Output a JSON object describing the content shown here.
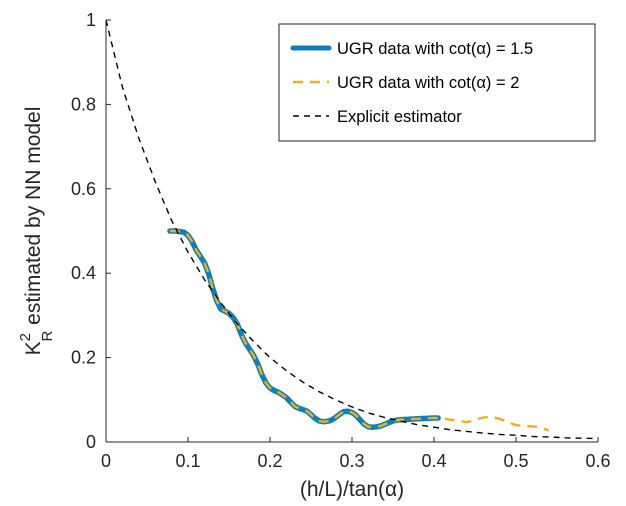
{
  "chart_data": {
    "type": "line",
    "xlabel": "(h/L)/tan(α)",
    "ylabel": {
      "base": "K",
      "sup": "2",
      "sub": "R",
      "rest": " estimated by NN model"
    },
    "xlim": [
      0,
      0.6
    ],
    "ylim": [
      0,
      1
    ],
    "xticks": [
      0,
      0.1,
      0.2,
      0.3,
      0.4,
      0.5,
      0.6
    ],
    "xtick_labels": [
      "0",
      "0.1",
      "0.2",
      "0.3",
      "0.4",
      "0.5",
      "0.6"
    ],
    "yticks": [
      0,
      0.2,
      0.4,
      0.6,
      0.8,
      1
    ],
    "ytick_labels": [
      "0",
      "0.2",
      "0.4",
      "0.6",
      "0.8",
      "1"
    ],
    "grid": false,
    "legend_position": "top-right",
    "series": [
      {
        "name": "UGR data with cot(α) = 1.5",
        "color": "#0f7fb5",
        "style": "solid",
        "x": [
          0.078,
          0.085,
          0.095,
          0.1,
          0.105,
          0.11,
          0.115,
          0.12,
          0.125,
          0.13,
          0.135,
          0.14,
          0.145,
          0.15,
          0.155,
          0.16,
          0.165,
          0.17,
          0.175,
          0.18,
          0.185,
          0.19,
          0.195,
          0.2,
          0.205,
          0.21,
          0.215,
          0.22,
          0.225,
          0.23,
          0.235,
          0.24,
          0.245,
          0.25,
          0.255,
          0.26,
          0.265,
          0.27,
          0.275,
          0.28,
          0.285,
          0.29,
          0.295,
          0.3,
          0.305,
          0.31,
          0.315,
          0.32,
          0.325,
          0.33,
          0.335,
          0.34,
          0.345,
          0.35,
          0.355,
          0.36,
          0.37,
          0.38,
          0.39,
          0.4,
          0.405
        ],
        "y": [
          0.5,
          0.5,
          0.497,
          0.49,
          0.475,
          0.455,
          0.44,
          0.425,
          0.4,
          0.365,
          0.335,
          0.315,
          0.31,
          0.305,
          0.295,
          0.28,
          0.255,
          0.235,
          0.22,
          0.205,
          0.185,
          0.16,
          0.14,
          0.128,
          0.122,
          0.118,
          0.112,
          0.105,
          0.095,
          0.085,
          0.08,
          0.077,
          0.073,
          0.065,
          0.056,
          0.05,
          0.048,
          0.049,
          0.052,
          0.058,
          0.066,
          0.072,
          0.073,
          0.07,
          0.063,
          0.052,
          0.042,
          0.036,
          0.035,
          0.036,
          0.038,
          0.042,
          0.046,
          0.05,
          0.052,
          0.053,
          0.054,
          0.055,
          0.056,
          0.057,
          0.057
        ]
      },
      {
        "name": "UGR data with cot(α) = 2",
        "color": "#edb120",
        "style": "dashed",
        "x": [
          0.078,
          0.085,
          0.095,
          0.1,
          0.105,
          0.11,
          0.115,
          0.12,
          0.125,
          0.13,
          0.135,
          0.14,
          0.145,
          0.15,
          0.155,
          0.16,
          0.165,
          0.17,
          0.175,
          0.18,
          0.185,
          0.19,
          0.195,
          0.2,
          0.205,
          0.21,
          0.215,
          0.22,
          0.225,
          0.23,
          0.235,
          0.24,
          0.245,
          0.25,
          0.255,
          0.26,
          0.265,
          0.27,
          0.275,
          0.28,
          0.285,
          0.29,
          0.295,
          0.3,
          0.305,
          0.31,
          0.315,
          0.32,
          0.325,
          0.33,
          0.335,
          0.34,
          0.345,
          0.35,
          0.355,
          0.36,
          0.37,
          0.38,
          0.39,
          0.4,
          0.41,
          0.42,
          0.43,
          0.44,
          0.45,
          0.46,
          0.47,
          0.48,
          0.49,
          0.5,
          0.51,
          0.52,
          0.53,
          0.54
        ],
        "y": [
          0.5,
          0.5,
          0.497,
          0.49,
          0.475,
          0.455,
          0.44,
          0.425,
          0.4,
          0.365,
          0.335,
          0.315,
          0.31,
          0.305,
          0.295,
          0.28,
          0.255,
          0.235,
          0.22,
          0.205,
          0.185,
          0.16,
          0.14,
          0.128,
          0.122,
          0.118,
          0.112,
          0.105,
          0.095,
          0.085,
          0.08,
          0.077,
          0.073,
          0.065,
          0.056,
          0.05,
          0.048,
          0.049,
          0.052,
          0.058,
          0.066,
          0.072,
          0.073,
          0.07,
          0.063,
          0.052,
          0.042,
          0.036,
          0.035,
          0.036,
          0.038,
          0.042,
          0.046,
          0.05,
          0.052,
          0.053,
          0.054,
          0.055,
          0.056,
          0.057,
          0.056,
          0.053,
          0.05,
          0.047,
          0.052,
          0.058,
          0.06,
          0.055,
          0.047,
          0.04,
          0.038,
          0.037,
          0.035,
          0.027
        ]
      },
      {
        "name": "Explicit estimator",
        "color": "#000000",
        "style": "dashed",
        "x": [
          0,
          0.02,
          0.04,
          0.06,
          0.08,
          0.1,
          0.12,
          0.14,
          0.16,
          0.18,
          0.2,
          0.22,
          0.24,
          0.26,
          0.28,
          0.3,
          0.32,
          0.34,
          0.36,
          0.38,
          0.4,
          0.42,
          0.44,
          0.46,
          0.48,
          0.5,
          0.52,
          0.54,
          0.56,
          0.58,
          0.6
        ],
        "y": [
          1,
          0.841,
          0.72,
          0.617,
          0.525,
          0.45,
          0.385,
          0.33,
          0.28,
          0.238,
          0.2,
          0.169,
          0.142,
          0.119,
          0.1,
          0.083,
          0.069,
          0.058,
          0.049,
          0.041,
          0.035,
          0.029,
          0.025,
          0.021,
          0.018,
          0.016,
          0.013,
          0.012,
          0.01,
          0.009,
          0.008
        ]
      }
    ]
  }
}
